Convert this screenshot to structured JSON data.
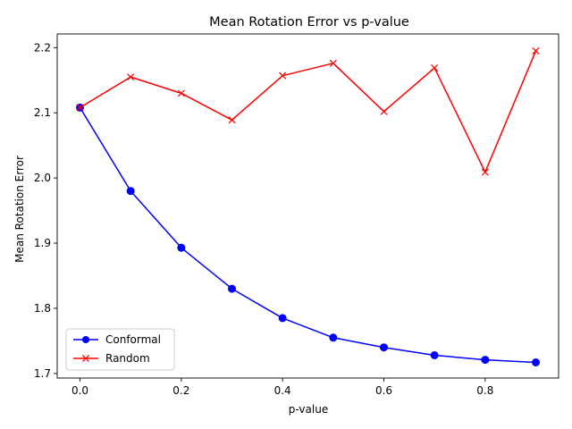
{
  "chart_data": {
    "type": "line",
    "title": "Mean Rotation Error vs p-value",
    "xlabel": "p-value",
    "ylabel": "Mean Rotation Error",
    "x": [
      0.0,
      0.1,
      0.2,
      0.3,
      0.4,
      0.5,
      0.6,
      0.7,
      0.8,
      0.9
    ],
    "xlim": [
      -0.045,
      0.945
    ],
    "ylim": [
      1.693,
      2.221
    ],
    "xticks": [
      0.0,
      0.2,
      0.4,
      0.6,
      0.8
    ],
    "xtick_labels": [
      "0.0",
      "0.2",
      "0.4",
      "0.6",
      "0.8"
    ],
    "yticks": [
      1.7,
      1.8,
      1.9,
      2.0,
      2.1,
      2.2
    ],
    "ytick_labels": [
      "1.7",
      "1.8",
      "1.9",
      "2.0",
      "2.1",
      "2.2"
    ],
    "grid": false,
    "legend_position": "lower-left",
    "series": [
      {
        "name": "Conformal",
        "color": "#0000ff",
        "marker": "circle",
        "values": [
          2.108,
          1.98,
          1.893,
          1.83,
          1.785,
          1.755,
          1.74,
          1.728,
          1.721,
          1.717
        ]
      },
      {
        "name": "Random",
        "color": "#ff0000",
        "marker": "x",
        "values": [
          2.108,
          2.155,
          2.13,
          2.089,
          2.157,
          2.176,
          2.102,
          2.169,
          2.009,
          2.195
        ]
      }
    ]
  }
}
